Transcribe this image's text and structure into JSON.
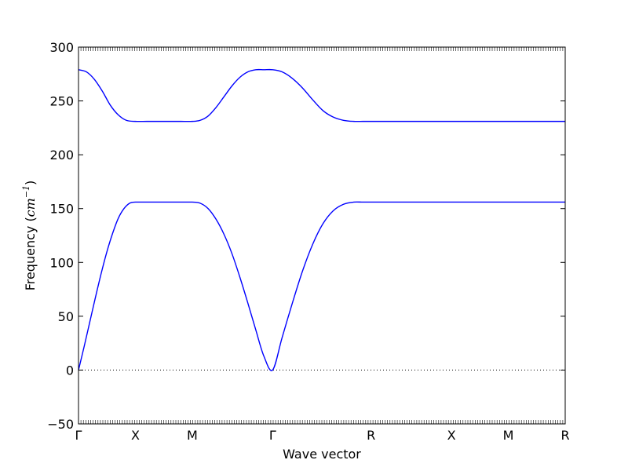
{
  "chart_data": {
    "type": "line",
    "xlabel": "Wave vector",
    "ylabel_text": "Frequency (",
    "ylabel_math": "cm",
    "ylabel_sup": "−1",
    "ylabel_close": ")",
    "ylim": [
      -50,
      300
    ],
    "yticks": [
      -50,
      0,
      50,
      100,
      150,
      200,
      250,
      300
    ],
    "ytick_labels": [
      "−50",
      "0",
      "50",
      "100",
      "150",
      "200",
      "250",
      "300"
    ],
    "x_ticks": [
      {
        "label": "Γ",
        "pos": 0.0
      },
      {
        "label": "X",
        "pos": 0.5
      },
      {
        "label": "M",
        "pos": 1.0
      },
      {
        "label": "Γ",
        "pos": 1.707
      },
      {
        "label": "R",
        "pos": 2.573
      },
      {
        "label": "X",
        "pos": 3.28
      },
      {
        "label": "M",
        "pos": 3.78
      },
      {
        "label": "R",
        "pos": 4.28
      }
    ],
    "xlim": [
      0,
      4.28
    ],
    "zero_line": {
      "y": 0,
      "style": "dotted"
    },
    "series": [
      {
        "color": "#0000ff",
        "x": [
          0,
          0.05,
          0.1,
          0.15,
          0.2,
          0.25,
          0.3,
          0.35,
          0.4,
          0.45,
          0.5,
          0.6,
          0.7,
          0.8,
          0.9,
          1.0,
          1.07,
          1.14,
          1.21,
          1.28,
          1.35,
          1.42,
          1.49,
          1.56,
          1.63,
          1.707,
          1.79,
          1.88,
          1.97,
          2.06,
          2.15,
          2.24,
          2.33,
          2.42,
          2.5,
          2.573,
          2.8,
          3.0,
          3.28,
          3.5,
          3.78,
          4.0,
          4.28
        ],
        "y": [
          0,
          22,
          45,
          68,
          90,
          110,
          127,
          141,
          150,
          155,
          156,
          156,
          156,
          156,
          156,
          156,
          155,
          150,
          140,
          126,
          108,
          86,
          62,
          37,
          13,
          0,
          30,
          62,
          92,
          117,
          136,
          148,
          154,
          156,
          156,
          156,
          156,
          156,
          156,
          156,
          156,
          156,
          156
        ]
      },
      {
        "color": "#0000ff",
        "x": [
          0,
          0.07,
          0.14,
          0.21,
          0.28,
          0.35,
          0.42,
          0.5,
          0.6,
          0.7,
          0.8,
          0.9,
          1.0,
          1.07,
          1.14,
          1.21,
          1.28,
          1.35,
          1.42,
          1.49,
          1.56,
          1.63,
          1.707,
          1.79,
          1.88,
          1.97,
          2.06,
          2.15,
          2.24,
          2.33,
          2.42,
          2.5,
          2.573,
          2.8,
          3.0,
          3.28,
          3.5,
          3.78,
          4.0,
          4.28
        ],
        "y": [
          279,
          277,
          270,
          259,
          246,
          237,
          232,
          231,
          231,
          231,
          231,
          231,
          231,
          232,
          236,
          244,
          254,
          264,
          272,
          277,
          279,
          279,
          279,
          277,
          271,
          262,
          251,
          241,
          235,
          232,
          231,
          231,
          231,
          231,
          231,
          231,
          231,
          231,
          231,
          231
        ]
      }
    ]
  }
}
